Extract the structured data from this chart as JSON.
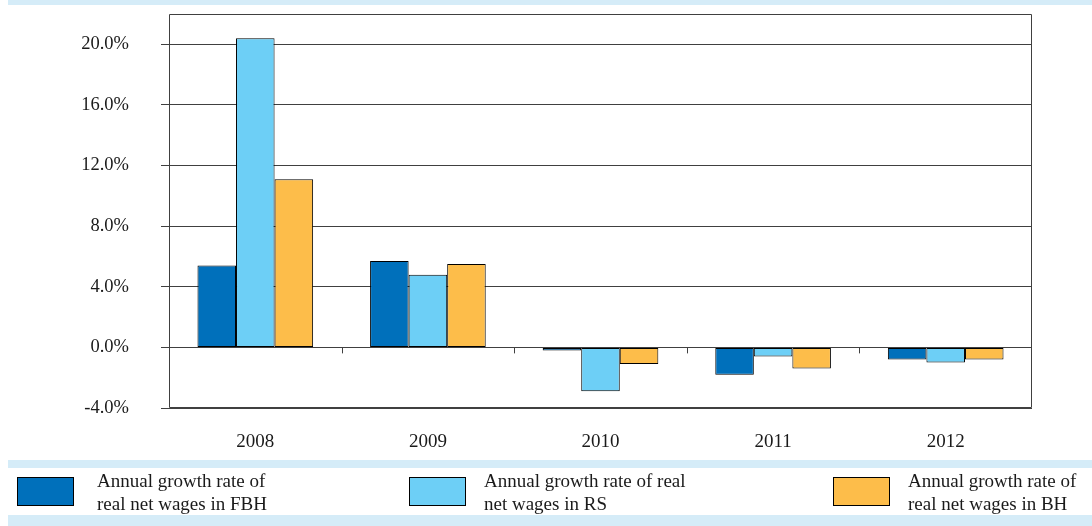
{
  "chart_data": {
    "type": "bar",
    "categories": [
      "2008",
      "2009",
      "2010",
      "2011",
      "2012"
    ],
    "series": [
      {
        "name": "Annual growth rate of real net wages in FBH",
        "color": "#0070bb",
        "values": [
          5.4,
          5.7,
          -0.2,
          -1.8,
          -0.8
        ]
      },
      {
        "name": "Annual growth rate of real net wages in RS",
        "color": "#6dcff6",
        "values": [
          20.4,
          4.8,
          -2.9,
          -0.6,
          -1.0
        ]
      },
      {
        "name": "Annual growth rate of real net wages in BH",
        "color": "#fdbd4a",
        "values": [
          11.1,
          5.5,
          -1.1,
          -1.4,
          -0.8
        ]
      }
    ],
    "ylim": [
      -4,
      22
    ],
    "yticks": [
      {
        "value": -4,
        "label": "-4.0%"
      },
      {
        "value": 0,
        "label": "0.0%"
      },
      {
        "value": 4,
        "label": "4.0%"
      },
      {
        "value": 8,
        "label": "8.0%"
      },
      {
        "value": 12,
        "label": "12.0%"
      },
      {
        "value": 16,
        "label": "16.0%"
      },
      {
        "value": 20,
        "label": "20.0%"
      }
    ],
    "grid": "y",
    "legend": "bottom"
  }
}
